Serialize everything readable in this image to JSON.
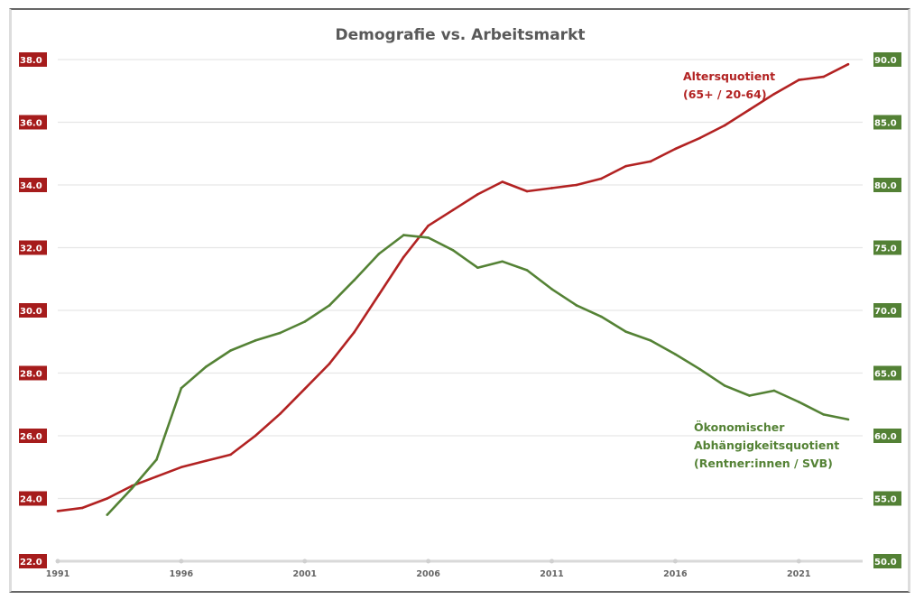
{
  "chart_data": {
    "type": "line",
    "title": "Demografie vs. Arbeitsmarkt",
    "xlabel": "",
    "ylabel_left": "",
    "ylabel_right": "",
    "x_range": [
      1991,
      2023
    ],
    "x_ticks": [
      "1991",
      "1996",
      "2001",
      "2006",
      "2011",
      "2016",
      "2021"
    ],
    "y_left": {
      "range": [
        22,
        38
      ],
      "ticks": [
        "22.0",
        "24.0",
        "26.0",
        "28.0",
        "30.0",
        "32.0",
        "34.0",
        "36.0",
        "38.0"
      ],
      "color": "#a61c1c"
    },
    "y_right": {
      "range": [
        50,
        90
      ],
      "ticks": [
        "50.0",
        "55.0",
        "60.0",
        "65.0",
        "70.0",
        "75.0",
        "80.0",
        "85.0",
        "90.0"
      ],
      "color": "#538135"
    },
    "grid": true,
    "series": [
      {
        "name": "Altersquotient (65+ / 20-64)",
        "label_lines": [
          "Altersquotient",
          "(65+ / 20-64)"
        ],
        "axis": "left",
        "color": "#b22222",
        "x": [
          1991,
          1992,
          1993,
          1994,
          1995,
          1996,
          1997,
          1998,
          1999,
          2000,
          2001,
          2002,
          2003,
          2004,
          2005,
          2006,
          2007,
          2008,
          2009,
          2010,
          2011,
          2012,
          2013,
          2014,
          2015,
          2016,
          2017,
          2018,
          2019,
          2020,
          2021,
          2022,
          2023
        ],
        "values": [
          23.6,
          23.7,
          24.0,
          24.4,
          24.7,
          25.0,
          25.2,
          25.4,
          26.0,
          26.7,
          27.5,
          28.3,
          29.3,
          30.5,
          31.7,
          32.7,
          33.2,
          33.7,
          34.1,
          33.8,
          33.9,
          34.0,
          34.2,
          34.6,
          34.75,
          35.15,
          35.5,
          35.9,
          36.4,
          36.9,
          37.35,
          37.45,
          37.85
        ]
      },
      {
        "name": "Ökonomischer Abhängigkeitsquotient (Rentner:innen / SVB)",
        "label_lines": [
          "Ökonomischer",
          "Abhängigkeitsquotient",
          "(Rentner:innen / SVB)"
        ],
        "axis": "right",
        "color": "#548235",
        "x": [
          1993,
          1994,
          1995,
          1996,
          1997,
          1998,
          1999,
          2000,
          2001,
          2002,
          2003,
          2004,
          2005,
          2006,
          2007,
          2008,
          2009,
          2010,
          2011,
          2012,
          2013,
          2014,
          2015,
          2016,
          2017,
          2018,
          2019,
          2020,
          2021,
          2022,
          2023
        ],
        "values": [
          53.7,
          55.8,
          58.1,
          63.8,
          65.5,
          66.8,
          67.6,
          68.2,
          69.1,
          70.4,
          72.4,
          74.5,
          76.0,
          75.8,
          74.8,
          73.4,
          73.9,
          73.2,
          71.7,
          70.4,
          69.5,
          68.3,
          67.6,
          66.5,
          65.3,
          64.0,
          63.2,
          63.6,
          62.7,
          61.7,
          61.3
        ]
      }
    ]
  }
}
